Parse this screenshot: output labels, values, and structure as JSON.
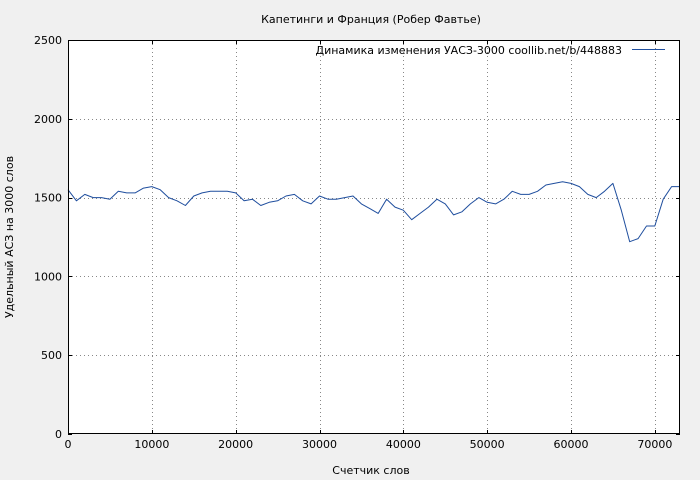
{
  "chart_data": {
    "type": "line",
    "title": "Капетинги и Франция (Робер Фавтье)",
    "xlabel": "Счетчик слов",
    "ylabel": "Удельный АСЗ на 3000 слов",
    "xlim": [
      0,
      73000
    ],
    "ylim": [
      0,
      2500
    ],
    "xticks": [
      0,
      10000,
      20000,
      30000,
      40000,
      50000,
      60000,
      70000
    ],
    "yticks": [
      0,
      500,
      1000,
      1500,
      2000,
      2500
    ],
    "grid": true,
    "legend_position": "top-right",
    "colors": {
      "series": "#1f4e9e",
      "grid": "#888888",
      "background": "#ffffff",
      "page": "#f0f0f0"
    },
    "series": [
      {
        "name": "Динамика изменения УАСЗ-3000  coollib.net/b/448883",
        "x": [
          0,
          1000,
          2000,
          3000,
          4000,
          5000,
          6000,
          7000,
          8000,
          9000,
          10000,
          11000,
          12000,
          13000,
          14000,
          15000,
          16000,
          17000,
          18000,
          19000,
          20000,
          21000,
          22000,
          23000,
          24000,
          25000,
          26000,
          27000,
          28000,
          29000,
          30000,
          31000,
          32000,
          33000,
          34000,
          35000,
          36000,
          37000,
          38000,
          39000,
          40000,
          41000,
          42000,
          43000,
          44000,
          45000,
          46000,
          47000,
          48000,
          49000,
          50000,
          51000,
          52000,
          53000,
          54000,
          55000,
          56000,
          57000,
          58000,
          59000,
          60000,
          61000,
          62000,
          63000,
          64000,
          65000,
          66000,
          67000,
          68000,
          69000,
          70000,
          71000,
          72000,
          73000
        ],
        "values": [
          1550,
          1480,
          1520,
          1500,
          1500,
          1490,
          1540,
          1530,
          1530,
          1560,
          1570,
          1550,
          1500,
          1480,
          1450,
          1510,
          1530,
          1540,
          1540,
          1540,
          1530,
          1480,
          1490,
          1450,
          1470,
          1480,
          1510,
          1520,
          1480,
          1460,
          1510,
          1490,
          1490,
          1500,
          1510,
          1460,
          1430,
          1400,
          1490,
          1440,
          1420,
          1360,
          1400,
          1440,
          1490,
          1460,
          1390,
          1410,
          1460,
          1500,
          1470,
          1460,
          1490,
          1540,
          1520,
          1520,
          1540,
          1580,
          1590,
          1600,
          1590,
          1570,
          1520,
          1500,
          1540,
          1590,
          1420,
          1220,
          1240,
          1320,
          1320,
          1490,
          1570,
          1570
        ]
      }
    ]
  }
}
